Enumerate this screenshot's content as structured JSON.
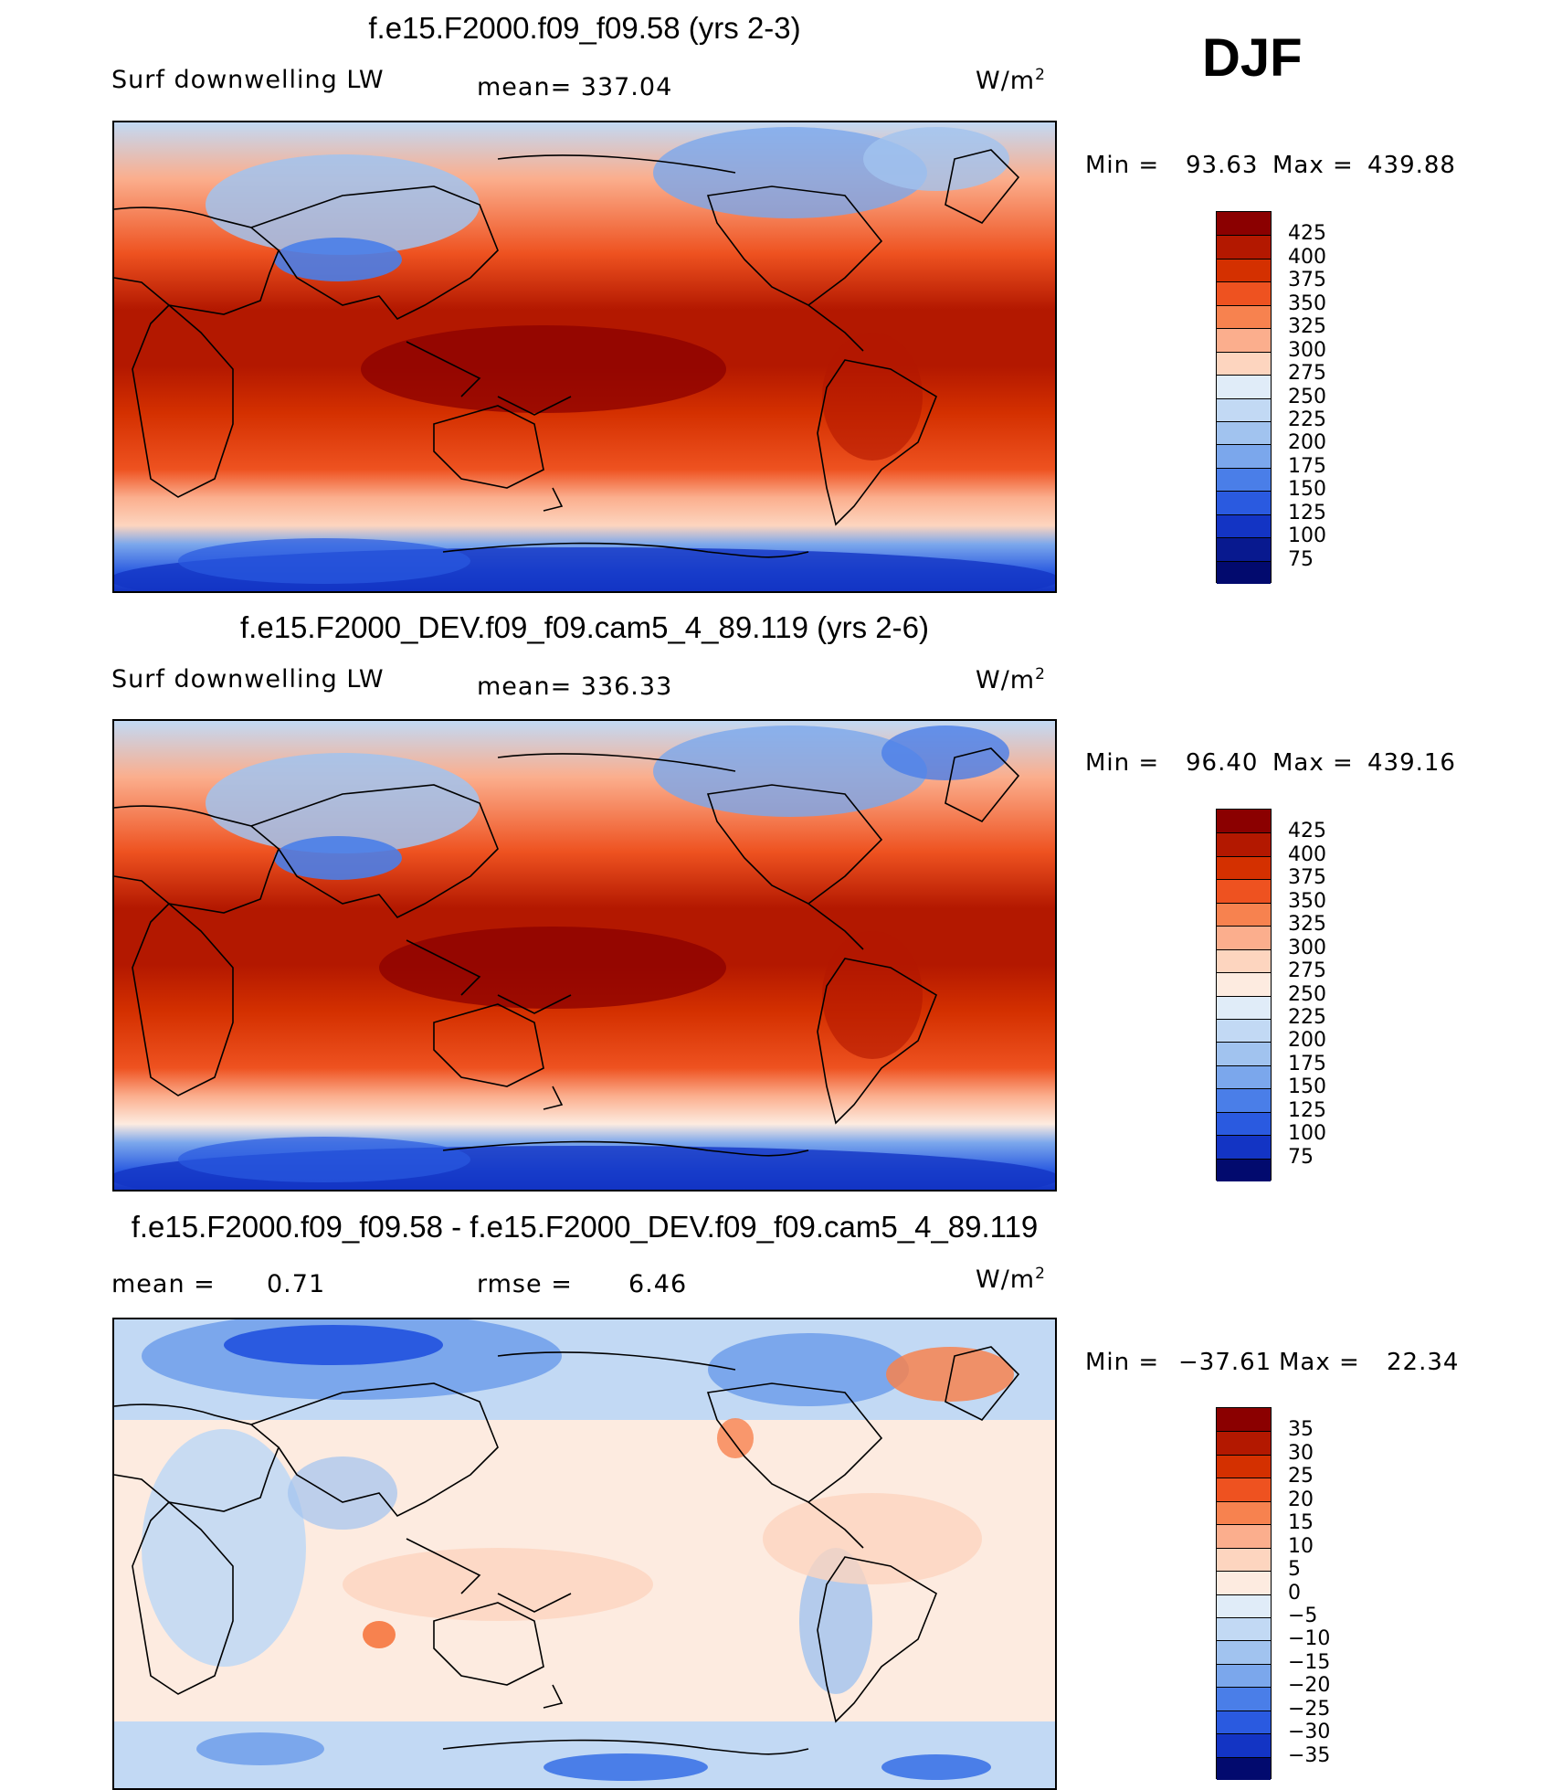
{
  "season": "DJF",
  "panels": [
    {
      "title": "f.e15.F2000.f09_f09.58 (yrs 2-3)",
      "left_label": "Surf downwelling LW",
      "center_label": "mean= 337.04",
      "units": "W/m",
      "units_sup": "2",
      "min_label": "Min =",
      "min_value": "93.63",
      "max_label": "Max =",
      "max_value": "439.88",
      "colorbar": {
        "labels": [
          "425",
          "400",
          "375",
          "350",
          "325",
          "300",
          "275",
          "250",
          "225",
          "200",
          "175",
          "150",
          "125",
          "100",
          "75"
        ],
        "colors": [
          "#8b0000",
          "#b31800",
          "#d43000",
          "#ee5220",
          "#f7824f",
          "#fbae8d",
          "#fdd5bf",
          "#e0ecf8",
          "#c2d9f4",
          "#a1c3ef",
          "#7ba7ec",
          "#4a7ee8",
          "#2a5ae0",
          "#1334c4",
          "#08198f",
          "#020a6e"
        ]
      }
    },
    {
      "title": "f.e15.F2000_DEV.f09_f09.cam5_4_89.119 (yrs 2-6)",
      "left_label": "Surf downwelling LW",
      "center_label": "mean= 336.33",
      "units": "W/m",
      "units_sup": "2",
      "min_label": "Min =",
      "min_value": "96.40",
      "max_label": "Max =",
      "max_value": "439.16",
      "colorbar": {
        "labels": [
          "425",
          "400",
          "375",
          "350",
          "325",
          "300",
          "275",
          "250",
          "225",
          "200",
          "175",
          "150",
          "125",
          "100",
          "75"
        ],
        "colors": [
          "#8b0000",
          "#b31800",
          "#d43000",
          "#ee5220",
          "#f7824f",
          "#fbae8d",
          "#fdd5bf",
          "#fdebe0",
          "#e0ecf8",
          "#c2d9f4",
          "#a1c3ef",
          "#7ba7ec",
          "#4a7ee8",
          "#2a5ae0",
          "#1334c4",
          "#020a6e"
        ]
      }
    },
    {
      "title": "f.e15.F2000.f09_f09.58 - f.e15.F2000_DEV.f09_f09.cam5_4_89.119",
      "left_label": "mean =",
      "left_value": "0.71",
      "center_label": "rmse =",
      "center_value": "6.46",
      "units": "W/m",
      "units_sup": "2",
      "min_label": "Min =",
      "min_value": "−37.61",
      "max_label": "Max =",
      "max_value": "22.34",
      "colorbar": {
        "labels": [
          "35",
          "30",
          "25",
          "20",
          "15",
          "10",
          "5",
          "0",
          "−5",
          "−10",
          "−15",
          "−20",
          "−25",
          "−30",
          "−35"
        ],
        "colors": [
          "#8b0000",
          "#b31800",
          "#d43000",
          "#ee5220",
          "#f7824f",
          "#fbae8d",
          "#fdd5bf",
          "#fdebe0",
          "#e0ecf8",
          "#c2d9f4",
          "#a1c3ef",
          "#7ba7ec",
          "#4a7ee8",
          "#2a5ae0",
          "#1334c4",
          "#020a6e"
        ]
      }
    }
  ],
  "chart_data": [
    {
      "type": "heatmap",
      "title": "f.e15.F2000.f09_f09.58 (yrs 2-3)",
      "variable": "Surf downwelling LW",
      "units": "W/m2",
      "mean": 337.04,
      "min": 93.63,
      "max": 439.88,
      "contour_levels": [
        75,
        100,
        125,
        150,
        175,
        200,
        225,
        250,
        275,
        300,
        325,
        350,
        375,
        400,
        425
      ]
    },
    {
      "type": "heatmap",
      "title": "f.e15.F2000_DEV.f09_f09.cam5_4_89.119 (yrs 2-6)",
      "variable": "Surf downwelling LW",
      "units": "W/m2",
      "mean": 336.33,
      "min": 96.4,
      "max": 439.16,
      "contour_levels": [
        75,
        100,
        125,
        150,
        175,
        200,
        225,
        250,
        275,
        300,
        325,
        350,
        375,
        400,
        425
      ]
    },
    {
      "type": "heatmap",
      "title": "f.e15.F2000.f09_f09.58 - f.e15.F2000_DEV.f09_f09.cam5_4_89.119",
      "units": "W/m2",
      "mean": 0.71,
      "rmse": 6.46,
      "min": -37.61,
      "max": 22.34,
      "contour_levels": [
        -35,
        -30,
        -25,
        -20,
        -15,
        -10,
        -5,
        0,
        5,
        10,
        15,
        20,
        25,
        30,
        35
      ]
    }
  ]
}
